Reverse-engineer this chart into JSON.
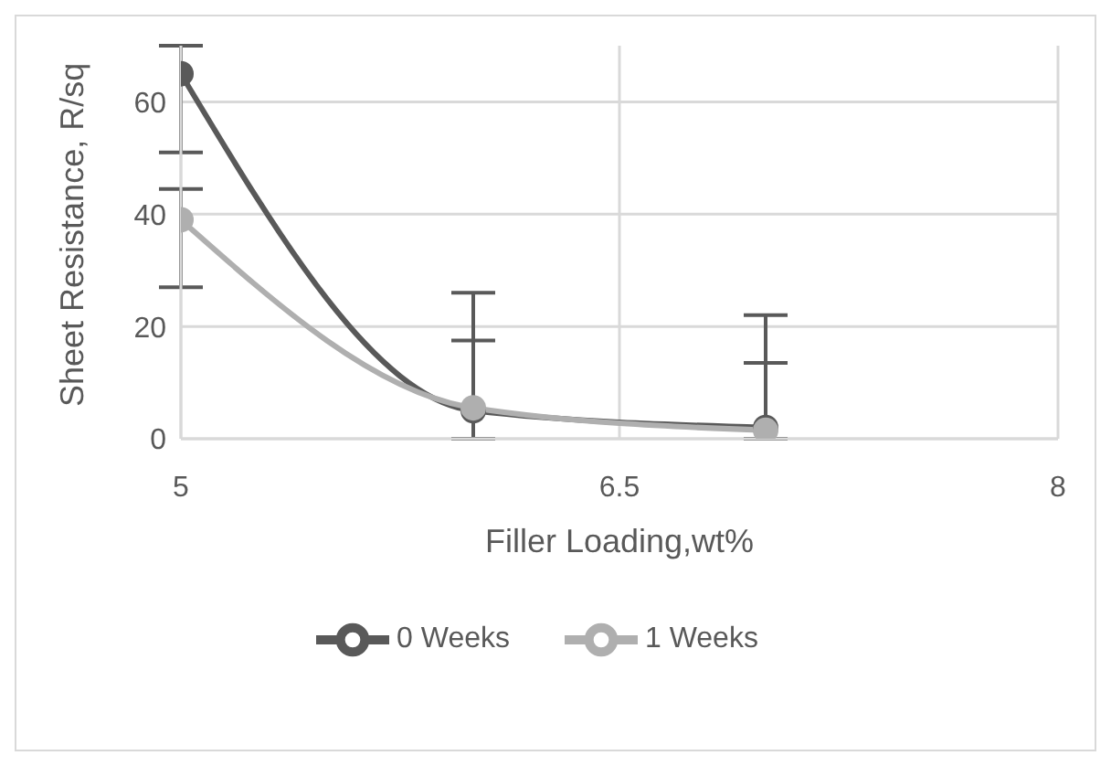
{
  "chart_data": {
    "type": "line",
    "xlabel": "Filler Loading,wt%",
    "ylabel": "Sheet Resistance, R/sq",
    "x": [
      5,
      6,
      7
    ],
    "series": [
      {
        "name": "0 Weeks",
        "color": "#595959",
        "values": [
          65,
          5,
          2
        ],
        "errors": [
          [
            51,
            70
          ],
          [
            0,
            26
          ],
          [
            0,
            22
          ]
        ]
      },
      {
        "name": "1 Weeks",
        "color": "#afafaf",
        "values": [
          39,
          5.5,
          1.5
        ],
        "errors": [
          [
            27,
            44.5
          ],
          [
            0,
            17.5
          ],
          [
            0,
            13.5
          ]
        ]
      }
    ],
    "xlim": [
      5,
      8
    ],
    "xticks": [
      5,
      6.5,
      8
    ],
    "ylim": [
      0,
      70
    ],
    "yticks": [
      0,
      20,
      40,
      60
    ],
    "grid": true,
    "legend": "bottom",
    "marker": "circle",
    "line_style": "solid"
  }
}
